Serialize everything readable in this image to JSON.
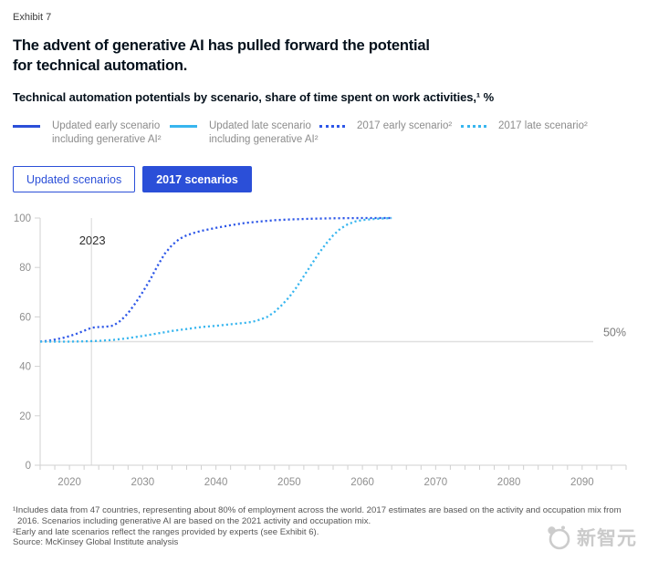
{
  "colors": {
    "blue": "#2b4fd8",
    "curve_blue": "#2d57e8",
    "cyan": "#38b6ef",
    "axis_gray": "#d2d2d2",
    "label_gray": "#8f8f8f"
  },
  "header": {
    "exhibit_label": "Exhibit 7",
    "title_line1": "The advent of generative AI has pulled forward the potential",
    "title_line2": "for technical automation.",
    "subtitle": "Technical automation potentials by scenario, share of time spent on work activities,¹ %"
  },
  "legend": {
    "items": [
      {
        "line1": "Updated early scenario",
        "line2": "including generative AI²",
        "style": "solid",
        "color": "#2b4fd8"
      },
      {
        "line1": "Updated late scenario",
        "line2": "including generative AI²",
        "style": "solid",
        "color": "#38b6ef"
      },
      {
        "line1": "2017 early scenario²",
        "line2": "",
        "style": "dotted",
        "color": "#2d57e8"
      },
      {
        "line1": "2017 late scenario²",
        "line2": "",
        "style": "dotted",
        "color": "#38b6ef"
      }
    ]
  },
  "tabs": {
    "items": [
      {
        "label": "Updated scenarios",
        "active": false
      },
      {
        "label": "2017 scenarios",
        "active": true
      }
    ]
  },
  "footnotes": {
    "note1": "¹Includes data from 47 countries, representing about 80% of employment across the world. 2017 estimates are based on the activity and occupation mix from 2016. Scenarios including generative AI are based on the 2021 activity and occupation mix.",
    "note2": "²Early and late scenarios reflect the ranges provided by experts (see Exhibit 6).",
    "source": "Source: McKinsey Global Institute analysis"
  },
  "watermark": {
    "text": "新智元"
  },
  "chart_data": {
    "type": "line",
    "title": "Technical automation potentials by scenario, share of time spent on work activities, %",
    "xlabel": "",
    "ylabel": "",
    "xlim": [
      2016,
      2096
    ],
    "ylim": [
      0,
      100
    ],
    "yticks": [
      0,
      20,
      40,
      60,
      80,
      100
    ],
    "xtick_labels": [
      2020,
      2030,
      2040,
      2050,
      2060,
      2070,
      2080,
      2090
    ],
    "minor_xtick_step": 2,
    "grid": false,
    "legend_position": "top",
    "annotation": {
      "label": "2023",
      "x": 2023
    },
    "reference_line": {
      "value": 50,
      "label": "50%"
    },
    "series": [
      {
        "name": "2017 early scenario",
        "color": "#2d57e8",
        "dash": "dotted",
        "points": [
          [
            2016,
            50
          ],
          [
            2017,
            50.3
          ],
          [
            2018,
            50.8
          ],
          [
            2019,
            51.4
          ],
          [
            2020,
            52.2
          ],
          [
            2021,
            53.2
          ],
          [
            2022,
            54.4
          ],
          [
            2023,
            55.6
          ],
          [
            2024,
            55.9
          ],
          [
            2025,
            56
          ],
          [
            2026,
            56.5
          ],
          [
            2027,
            58.5
          ],
          [
            2028,
            61.5
          ],
          [
            2029,
            65.5
          ],
          [
            2030,
            70
          ],
          [
            2031,
            75
          ],
          [
            2032,
            80.5
          ],
          [
            2033,
            85.5
          ],
          [
            2034,
            89
          ],
          [
            2035,
            91.5
          ],
          [
            2036,
            93
          ],
          [
            2037,
            94
          ],
          [
            2038,
            94.8
          ],
          [
            2040,
            96
          ],
          [
            2042,
            97.1
          ],
          [
            2044,
            98
          ],
          [
            2046,
            98.6
          ],
          [
            2048,
            99.1
          ],
          [
            2050,
            99.4
          ],
          [
            2053,
            99.7
          ],
          [
            2056,
            99.9
          ],
          [
            2060,
            100
          ],
          [
            2064,
            100
          ]
        ]
      },
      {
        "name": "2017 late scenario",
        "color": "#38b6ef",
        "dash": "dotted",
        "points": [
          [
            2016,
            50
          ],
          [
            2018,
            50
          ],
          [
            2020,
            50
          ],
          [
            2022,
            50.1
          ],
          [
            2024,
            50.3
          ],
          [
            2026,
            50.7
          ],
          [
            2028,
            51.4
          ],
          [
            2030,
            52.3
          ],
          [
            2032,
            53.3
          ],
          [
            2034,
            54.3
          ],
          [
            2036,
            55.1
          ],
          [
            2038,
            55.9
          ],
          [
            2040,
            56.4
          ],
          [
            2042,
            57
          ],
          [
            2044,
            57.6
          ],
          [
            2045,
            58
          ],
          [
            2046,
            58.9
          ],
          [
            2047,
            60
          ],
          [
            2048,
            62
          ],
          [
            2049,
            64.8
          ],
          [
            2050,
            68
          ],
          [
            2051,
            72
          ],
          [
            2052,
            76.5
          ],
          [
            2053,
            81
          ],
          [
            2054,
            85.5
          ],
          [
            2055,
            89.5
          ],
          [
            2056,
            93
          ],
          [
            2057,
            95.7
          ],
          [
            2058,
            97.5
          ],
          [
            2059,
            98.6
          ],
          [
            2060,
            99.2
          ],
          [
            2062,
            99.7
          ],
          [
            2064,
            100
          ]
        ]
      }
    ]
  }
}
